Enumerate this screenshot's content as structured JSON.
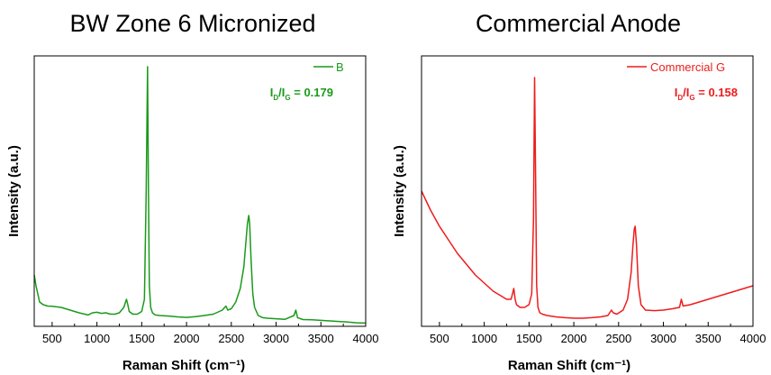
{
  "chart_data": [
    {
      "type": "line",
      "title": "BW Zone 6 Micronized",
      "xlabel": "Raman Shift (cm⁻¹)",
      "ylabel": "Intensity (a.u.)",
      "xlim": [
        300,
        4000
      ],
      "ylim": [
        0,
        1
      ],
      "xticks": [
        "500",
        "1000",
        "1500",
        "2000",
        "2500",
        "3000",
        "3500",
        "4000"
      ],
      "yticks_shown": false,
      "legend": "top-right",
      "color": "#1a9a1a",
      "ratio_label": {
        "I": "I",
        "D": "D",
        "slash": "/",
        "G": "G",
        "text": " = 0.179"
      },
      "series": [
        {
          "name": "B",
          "x": [
            300,
            320,
            360,
            400,
            450,
            500,
            600,
            700,
            800,
            900,
            950,
            1000,
            1050,
            1100,
            1150,
            1200,
            1250,
            1300,
            1330,
            1345,
            1360,
            1380,
            1400,
            1450,
            1500,
            1530,
            1550,
            1565,
            1575,
            1585,
            1600,
            1620,
            1650,
            1700,
            1800,
            1900,
            2000,
            2100,
            2200,
            2300,
            2400,
            2440,
            2460,
            2500,
            2550,
            2600,
            2640,
            2660,
            2680,
            2695,
            2705,
            2720,
            2740,
            2760,
            2800,
            2850,
            2900,
            3000,
            3100,
            3200,
            3220,
            3240,
            3300,
            3400,
            3500,
            3600,
            3700,
            3800,
            3900,
            4000
          ],
          "y": [
            0.19,
            0.15,
            0.09,
            0.08,
            0.075,
            0.074,
            0.07,
            0.06,
            0.05,
            0.042,
            0.05,
            0.052,
            0.048,
            0.05,
            0.045,
            0.045,
            0.05,
            0.07,
            0.1,
            0.08,
            0.055,
            0.05,
            0.045,
            0.045,
            0.055,
            0.1,
            0.5,
            0.96,
            0.5,
            0.15,
            0.07,
            0.05,
            0.042,
            0.04,
            0.038,
            0.035,
            0.033,
            0.036,
            0.04,
            0.045,
            0.06,
            0.075,
            0.06,
            0.065,
            0.09,
            0.14,
            0.22,
            0.3,
            0.38,
            0.41,
            0.38,
            0.25,
            0.12,
            0.07,
            0.04,
            0.032,
            0.03,
            0.028,
            0.026,
            0.04,
            0.06,
            0.032,
            0.025,
            0.024,
            0.022,
            0.02,
            0.018,
            0.016,
            0.013,
            0.012
          ]
        }
      ]
    },
    {
      "type": "line",
      "title": "Commercial Anode",
      "xlabel": "Raman Shift (cm⁻¹)",
      "ylabel": "Intensity (a.u.)",
      "xlim": [
        300,
        4000
      ],
      "ylim": [
        0,
        1
      ],
      "xticks": [
        "500",
        "1000",
        "1500",
        "2000",
        "2500",
        "3000",
        "3500",
        "4000"
      ],
      "yticks_shown": false,
      "legend": "top-right",
      "color": "#ee1c1c",
      "ratio_label": {
        "I": "I",
        "D": "D",
        "slash": "/",
        "G": "G",
        "text": " = 0.158"
      },
      "series": [
        {
          "name": "Commercial G",
          "x": [
            300,
            400,
            500,
            600,
            700,
            800,
            900,
            1000,
            1100,
            1200,
            1250,
            1300,
            1330,
            1345,
            1360,
            1400,
            1450,
            1500,
            1530,
            1550,
            1562,
            1572,
            1585,
            1600,
            1620,
            1650,
            1700,
            1800,
            1900,
            2000,
            2100,
            2200,
            2300,
            2380,
            2420,
            2440,
            2480,
            2550,
            2600,
            2640,
            2660,
            2675,
            2685,
            2700,
            2720,
            2750,
            2800,
            2900,
            3000,
            3100,
            3180,
            3200,
            3220,
            3300,
            3400,
            3500,
            3600,
            3700,
            3800,
            3900,
            4000
          ],
          "y": [
            0.5,
            0.43,
            0.37,
            0.32,
            0.27,
            0.23,
            0.19,
            0.16,
            0.13,
            0.11,
            0.1,
            0.1,
            0.14,
            0.1,
            0.08,
            0.07,
            0.07,
            0.08,
            0.12,
            0.4,
            0.92,
            0.6,
            0.15,
            0.07,
            0.05,
            0.045,
            0.04,
            0.035,
            0.032,
            0.03,
            0.03,
            0.032,
            0.035,
            0.04,
            0.06,
            0.05,
            0.045,
            0.06,
            0.1,
            0.2,
            0.3,
            0.36,
            0.37,
            0.3,
            0.15,
            0.08,
            0.06,
            0.058,
            0.06,
            0.065,
            0.07,
            0.1,
            0.075,
            0.08,
            0.09,
            0.1,
            0.11,
            0.12,
            0.13,
            0.14,
            0.15
          ]
        }
      ]
    }
  ]
}
